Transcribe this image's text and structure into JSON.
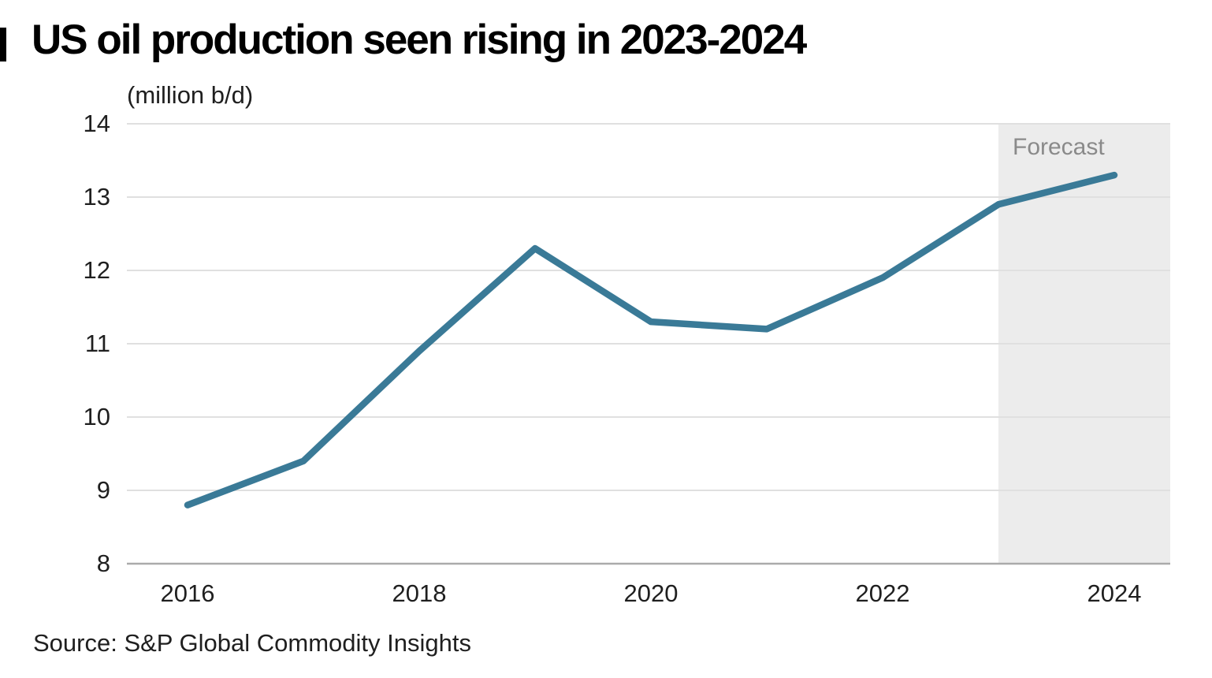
{
  "header": {
    "title": "US oil production seen rising in 2023-2024",
    "unit_label": "(million b/d)"
  },
  "source": {
    "text": "Source: S&P Global Commodity Insights"
  },
  "chart_data": {
    "type": "line",
    "title": "US oil production seen rising in 2023-2024",
    "unit": "million b/d",
    "x": [
      2016,
      2017,
      2018,
      2019,
      2020,
      2021,
      2022,
      2023,
      2024
    ],
    "series": [
      {
        "name": "US oil production (million b/d)",
        "values": [
          8.8,
          9.4,
          10.9,
          12.3,
          11.3,
          11.2,
          11.9,
          12.9,
          13.3
        ]
      }
    ],
    "ylim": [
      8,
      14
    ],
    "yticks": [
      8,
      9,
      10,
      11,
      12,
      13,
      14
    ],
    "xticks": [
      2016,
      2018,
      2020,
      2022,
      2024
    ],
    "grid": "horizontal",
    "legend": "none",
    "forecast": {
      "label": "Forecast",
      "start": 2023,
      "region_color": "#ececec",
      "label_color": "#8a8a8a"
    },
    "line_color": "#3a7a97",
    "grid_color": "#e0e0e0",
    "axis_color": "#ababab"
  }
}
